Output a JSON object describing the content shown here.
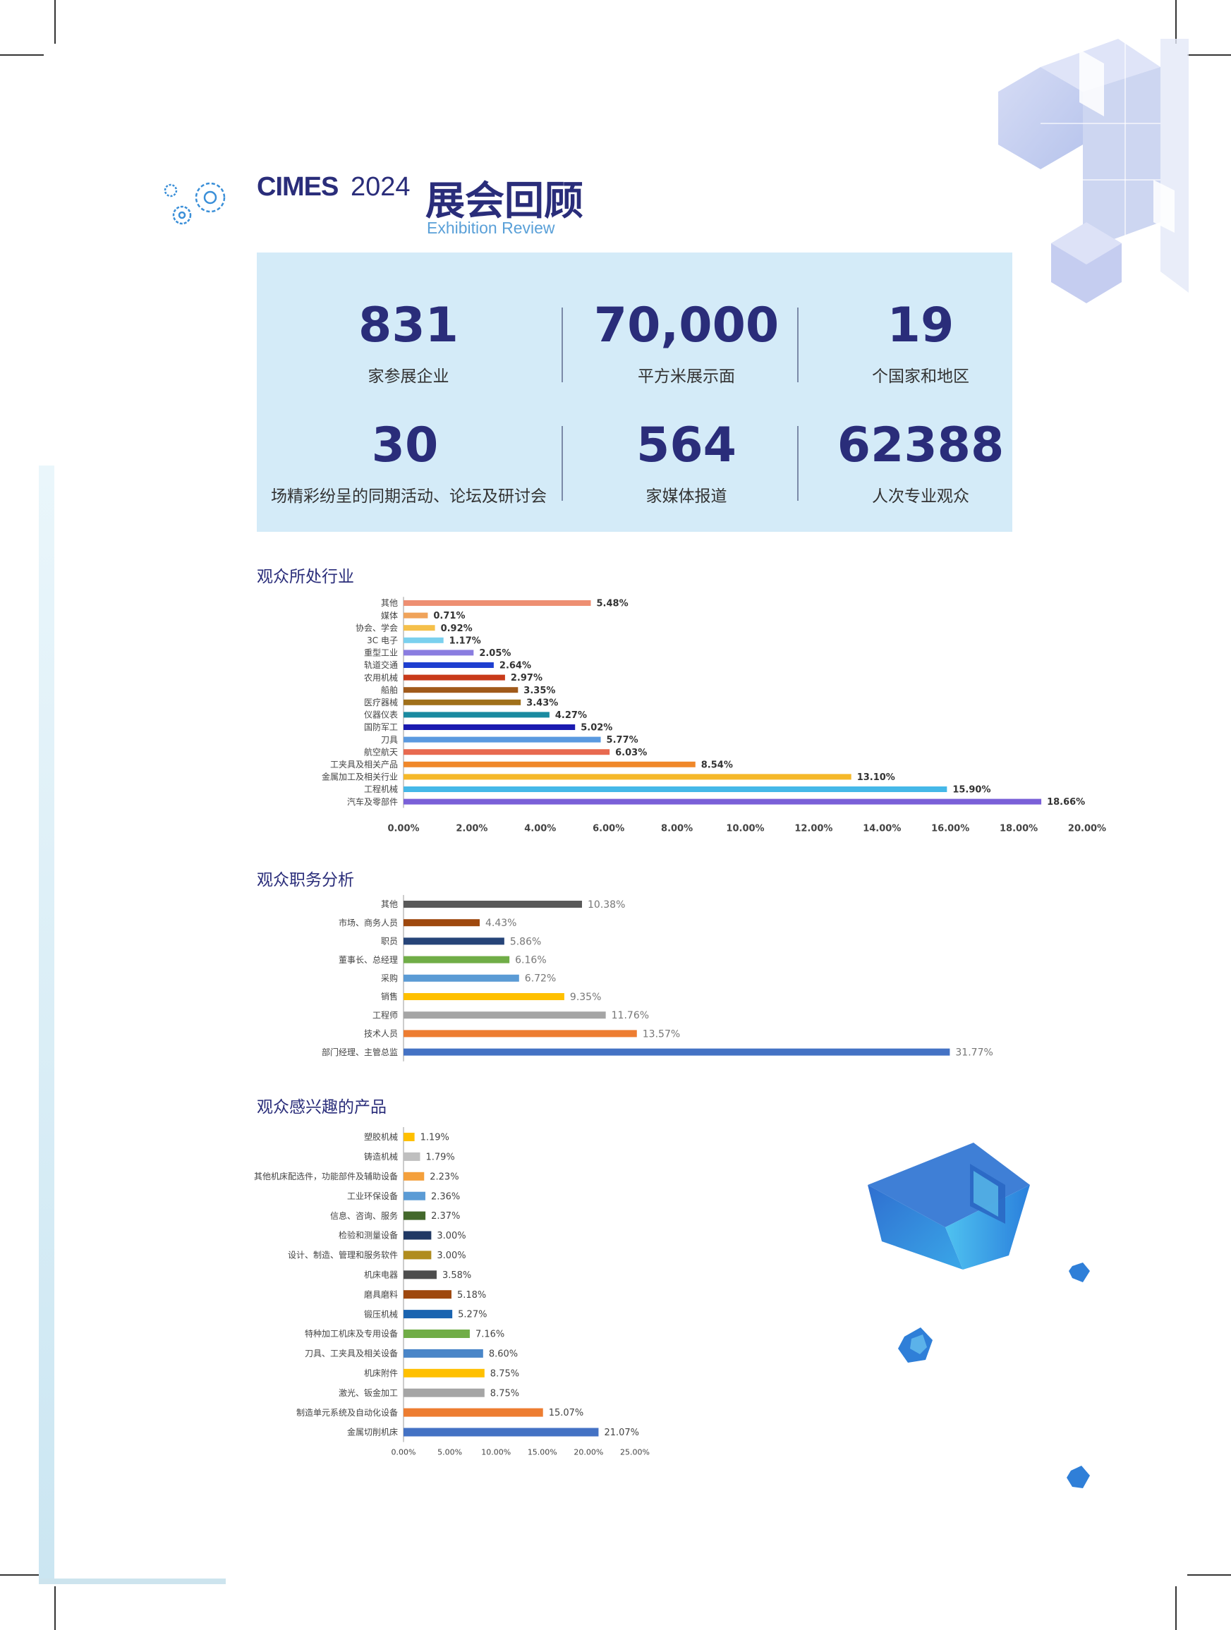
{
  "header": {
    "brand": "CIMES",
    "year": "2024",
    "title_cn": "展会回顾",
    "title_en": "Exhibition Review"
  },
  "stats": [
    {
      "value": "831",
      "label": "家参展企业"
    },
    {
      "value": "70,000",
      "label": "平方米展示面"
    },
    {
      "value": "19",
      "label": "个国家和地区"
    },
    {
      "value": "30",
      "label": "场精彩纷呈的同期活动、论坛及研讨会"
    },
    {
      "value": "564",
      "label": "家媒体报道"
    },
    {
      "value": "62388",
      "label": "人次专业观众"
    }
  ],
  "sections": {
    "industry_title": "观众所处行业",
    "position_title": "观众职务分析",
    "product_title": "观众感兴趣的产品"
  },
  "chart_data": [
    {
      "type": "bar",
      "orientation": "horizontal",
      "title": "观众所处行业",
      "categories": [
        "其他",
        "媒体",
        "协会、学会",
        "3C 电子",
        "重型工业",
        "轨道交通",
        "农用机械",
        "船舶",
        "医疗器械",
        "仪器仪表",
        "国防军工",
        "刀具",
        "航空航天",
        "工夹具及相关产品",
        "金属加工及相关行业",
        "工程机械",
        "汽车及零部件"
      ],
      "values": [
        5.48,
        0.71,
        0.92,
        1.17,
        2.05,
        2.64,
        2.97,
        3.35,
        3.43,
        4.27,
        5.02,
        5.77,
        6.03,
        8.54,
        13.1,
        15.9,
        18.66
      ],
      "labels": [
        "5.48%",
        "0.71%",
        "0.92%",
        "1.17%",
        "2.05%",
        "2.64%",
        "2.97%",
        "3.35%",
        "3.43%",
        "4.27%",
        "5.02%",
        "5.77%",
        "6.03%",
        "8.54%",
        "13.10%",
        "15.90%",
        "18.66%"
      ],
      "colors": [
        "#ee8f72",
        "#f0a35a",
        "#f5c04a",
        "#7ad0ee",
        "#8a7de0",
        "#1f3fd0",
        "#c83a1a",
        "#a05a1a",
        "#a0701a",
        "#1a8aa0",
        "#1a1ab0",
        "#5a9ae0",
        "#e86a50",
        "#f0882a",
        "#f5b82a",
        "#45b8e8",
        "#7a60d8"
      ],
      "xticks": [
        "0.00%",
        "2.00%",
        "4.00%",
        "6.00%",
        "8.00%",
        "10.00%",
        "12.00%",
        "14.00%",
        "16.00%",
        "18.00%",
        "20.00%"
      ],
      "xlim": [
        0,
        20
      ]
    },
    {
      "type": "bar",
      "orientation": "horizontal",
      "title": "观众职务分析",
      "categories": [
        "其他",
        "市场、商务人员",
        "职员",
        "董事长、总经理",
        "采购",
        "销售",
        "工程师",
        "技术人员",
        "部门经理、主管总监"
      ],
      "values": [
        10.38,
        4.43,
        5.86,
        6.16,
        6.72,
        9.35,
        11.76,
        13.57,
        31.77
      ],
      "labels": [
        "10.38%",
        "4.43%",
        "5.86%",
        "6.16%",
        "6.72%",
        "9.35%",
        "11.76%",
        "13.57%",
        "31.77%"
      ],
      "colors": [
        "#595959",
        "#9e480e",
        "#264478",
        "#70ad47",
        "#5b9bd5",
        "#ffc000",
        "#a5a5a5",
        "#ed7d31",
        "#4472c4"
      ],
      "xlim": [
        0,
        32
      ]
    },
    {
      "type": "bar",
      "orientation": "horizontal",
      "title": "观众感兴趣的产品",
      "categories": [
        "塑胶机械",
        "铸造机械",
        "其他机床配选件，功能部件及辅助设备",
        "工业环保设备",
        "信息、咨询、服务",
        "检验和测量设备",
        "设计、制造、管理和服务软件",
        "机床电器",
        "磨具磨料",
        "锻压机械",
        "特种加工机床及专用设备",
        "刀具、工夹具及相关设备",
        "机床附件",
        "激光、钣金加工",
        "制造单元系统及自动化设备",
        "金属切削机床"
      ],
      "values": [
        1.19,
        1.79,
        2.23,
        2.36,
        2.37,
        3.0,
        3.0,
        3.58,
        5.18,
        5.27,
        7.16,
        8.6,
        8.75,
        8.75,
        15.07,
        21.07
      ],
      "labels": [
        "1.19%",
        "1.79%",
        "2.23%",
        "2.36%",
        "2.37%",
        "3.00%",
        "3.00%",
        "3.58%",
        "5.18%",
        "5.27%",
        "7.16%",
        "8.60%",
        "8.75%",
        "8.75%",
        "15.07%",
        "21.07%"
      ],
      "colors": [
        "#ffc000",
        "#bfbfbf",
        "#f4a03c",
        "#5b9bd5",
        "#43682b",
        "#203864",
        "#b08c1e",
        "#4d4d4d",
        "#9e480e",
        "#1a64b0",
        "#70ad47",
        "#4a86c8",
        "#ffc000",
        "#a5a5a5",
        "#ed7d31",
        "#4472c4"
      ],
      "xticks": [
        "0.00%",
        "5.00%",
        "10.00%",
        "15.00%",
        "20.00%",
        "25.00%"
      ],
      "xlim": [
        0,
        25
      ]
    }
  ]
}
